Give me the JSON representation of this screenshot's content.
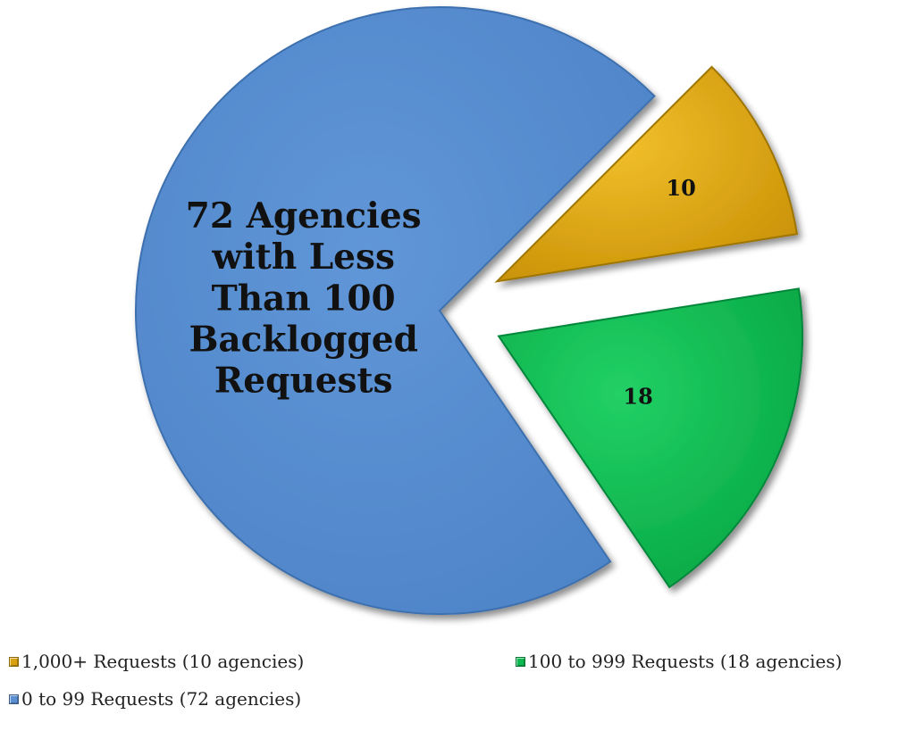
{
  "chart_data": {
    "type": "pie",
    "slices": [
      {
        "value": 10,
        "data_label": "10",
        "legend_label": "1,000+ Requests (10 agencies)",
        "color": "#d9a20a",
        "exploded": true
      },
      {
        "value": 18,
        "data_label": "18",
        "legend_label": "100 to 999 Requests (18 agencies)",
        "color": "#0cb84f",
        "exploded": true
      },
      {
        "value": 72,
        "data_label": "72 Agencies with Less Than 100 Backlogged Requests",
        "data_label_lines": [
          "72 Agencies",
          "with Less",
          "Than 100",
          "Backlogged",
          "Requests"
        ],
        "legend_label": "0 to 99 Requests (72 agencies)",
        "color": "#5a8fd1",
        "exploded": false
      }
    ],
    "legend_position": "bottom"
  }
}
